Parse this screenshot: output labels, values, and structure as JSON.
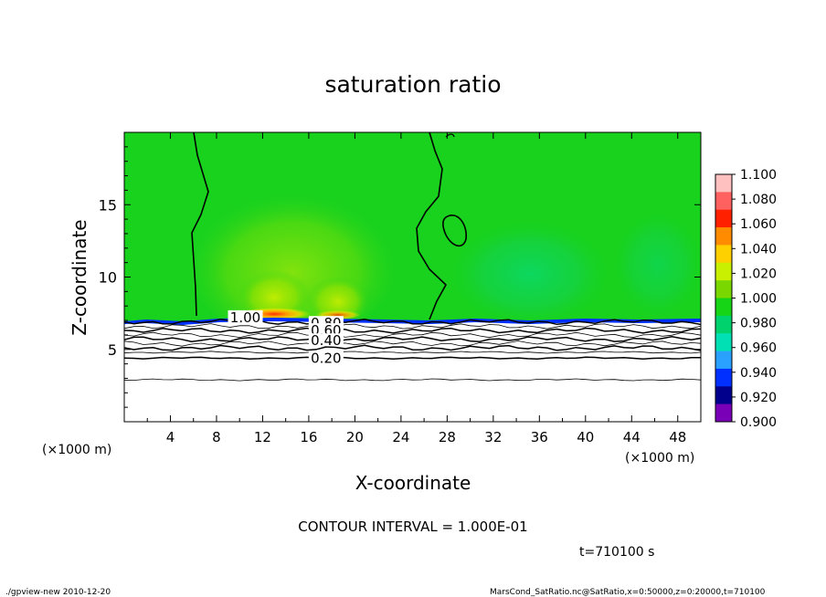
{
  "chart_data": {
    "type": "heatmap",
    "title": "saturation ratio",
    "xlabel": "X-coordinate",
    "ylabel": "Z-coordinate",
    "x_unit_left": "(×1000 m)",
    "x_unit_right": "(×1000 m)",
    "xlim": [
      0,
      50
    ],
    "ylim": [
      0,
      20
    ],
    "x_ticks": [
      "4",
      "8",
      "12",
      "16",
      "20",
      "24",
      "28",
      "32",
      "36",
      "40",
      "44",
      "48"
    ],
    "y_ticks": [
      "5",
      "10",
      "15"
    ],
    "colorbar": {
      "levels": [
        "1.100",
        "1.080",
        "1.060",
        "1.040",
        "1.020",
        "1.000",
        "0.980",
        "0.960",
        "0.940",
        "0.920",
        "0.900"
      ],
      "colors": [
        "#ffc0c0",
        "#ff6060",
        "#ff2000",
        "#ff8c00",
        "#ffd000",
        "#c8f000",
        "#7ad800",
        "#16d416",
        "#00d36e",
        "#00e0b4",
        "#2aa0ff",
        "#0030ff",
        "#00008c",
        "#7a00b8"
      ]
    },
    "contour_labels": [
      {
        "label": "1.00",
        "x": 10.5,
        "z": 7.2
      },
      {
        "label": "0.80",
        "x": 17.5,
        "z": 6.8
      },
      {
        "label": "0.60",
        "x": 17.5,
        "z": 6.3
      },
      {
        "label": "0.40",
        "x": 17.5,
        "z": 5.6
      },
      {
        "label": "0.20",
        "x": 17.5,
        "z": 4.4
      }
    ],
    "contour_lines_z": [
      6.9,
      6.6,
      6.3,
      6.0,
      5.7,
      5.4,
      5.1,
      4.8,
      4.4,
      2.9
    ]
  },
  "footer": {
    "contour_interval": "CONTOUR INTERVAL = 1.000E-01",
    "time": "t=710100 s",
    "left_note": "./gpview-new  2010-12-20",
    "right_note": "MarsCond_SatRatio.nc@SatRatio,x=0:50000,z=0:20000,t=710100"
  }
}
